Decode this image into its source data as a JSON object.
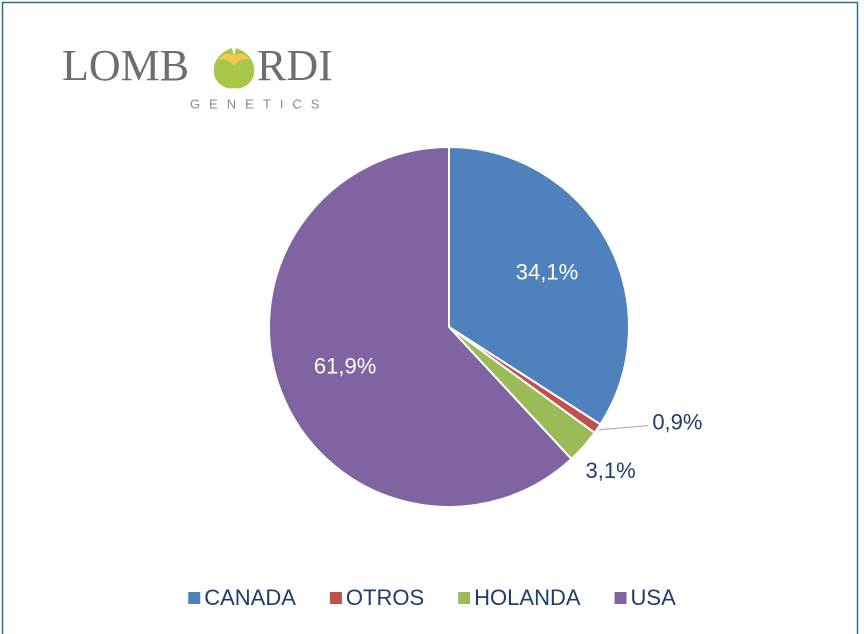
{
  "logo": {
    "left": "LOMB",
    "right": "RDI",
    "subtitle": "GENETICS"
  },
  "chart_data": {
    "type": "pie",
    "categories": [
      "CANADA",
      "OTROS",
      "HOLANDA",
      "USA"
    ],
    "values": [
      34.1,
      0.9,
      3.1,
      61.9
    ],
    "value_labels": [
      "34,1%",
      "0,9%",
      "3,1%",
      "61,9%"
    ],
    "colors": [
      "#4f81bd",
      "#c0504d",
      "#9bbb59",
      "#8064a2"
    ],
    "legend": "bottom"
  }
}
